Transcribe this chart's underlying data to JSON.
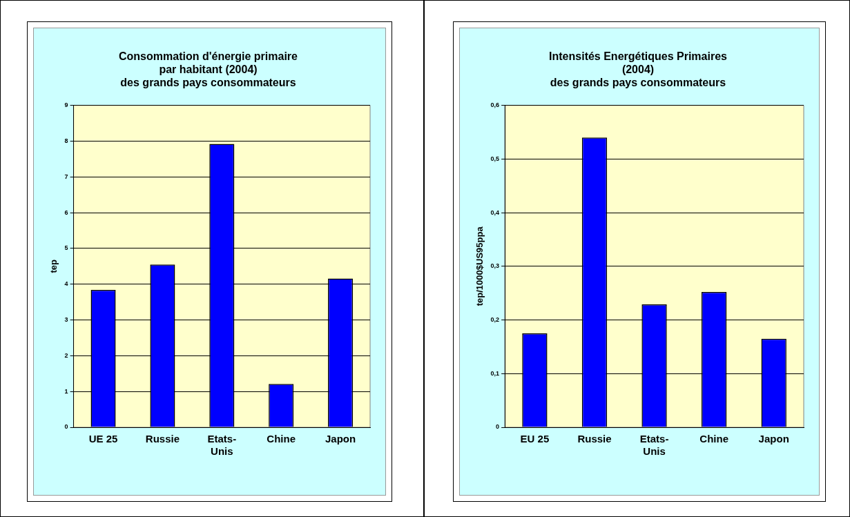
{
  "chart_data": [
    {
      "type": "bar",
      "title": "Consommation d'énergie primaire\npar habitant (2004)\ndes grands pays consommateurs",
      "ylabel": "tep",
      "categories": [
        "UE 25",
        "Russie",
        "Etats-Unis",
        "Chine",
        "Japon"
      ],
      "values": [
        3.84,
        4.55,
        7.92,
        1.21,
        4.16
      ],
      "color": "#0000ff",
      "ylim": [
        0,
        9
      ],
      "yticks": [
        0,
        1,
        2,
        3,
        4,
        5,
        6,
        7,
        8,
        9
      ],
      "grid": "y"
    },
    {
      "type": "bar",
      "title": "Intensités Energétiques Primaires\n(2004)\ndes grands pays consommateurs",
      "ylabel": "tep/1000$US95ppa",
      "categories": [
        "EU 25",
        "Russie",
        "Etats-Unis",
        "Chine",
        "Japon"
      ],
      "values": [
        0.175,
        0.54,
        0.229,
        0.252,
        0.165
      ],
      "color": "#0000ff",
      "ylim": [
        0,
        0.6
      ],
      "yticks": [
        0,
        {
          "value": 0.1,
          "label": "0,1"
        },
        {
          "value": 0.2,
          "label": "0,2"
        },
        {
          "value": 0.3,
          "label": "0,3"
        },
        {
          "value": 0.4,
          "label": "0,4"
        },
        {
          "value": 0.5,
          "label": "0,5"
        },
        {
          "value": 0.6,
          "label": "0,6"
        }
      ],
      "grid": "y"
    }
  ]
}
